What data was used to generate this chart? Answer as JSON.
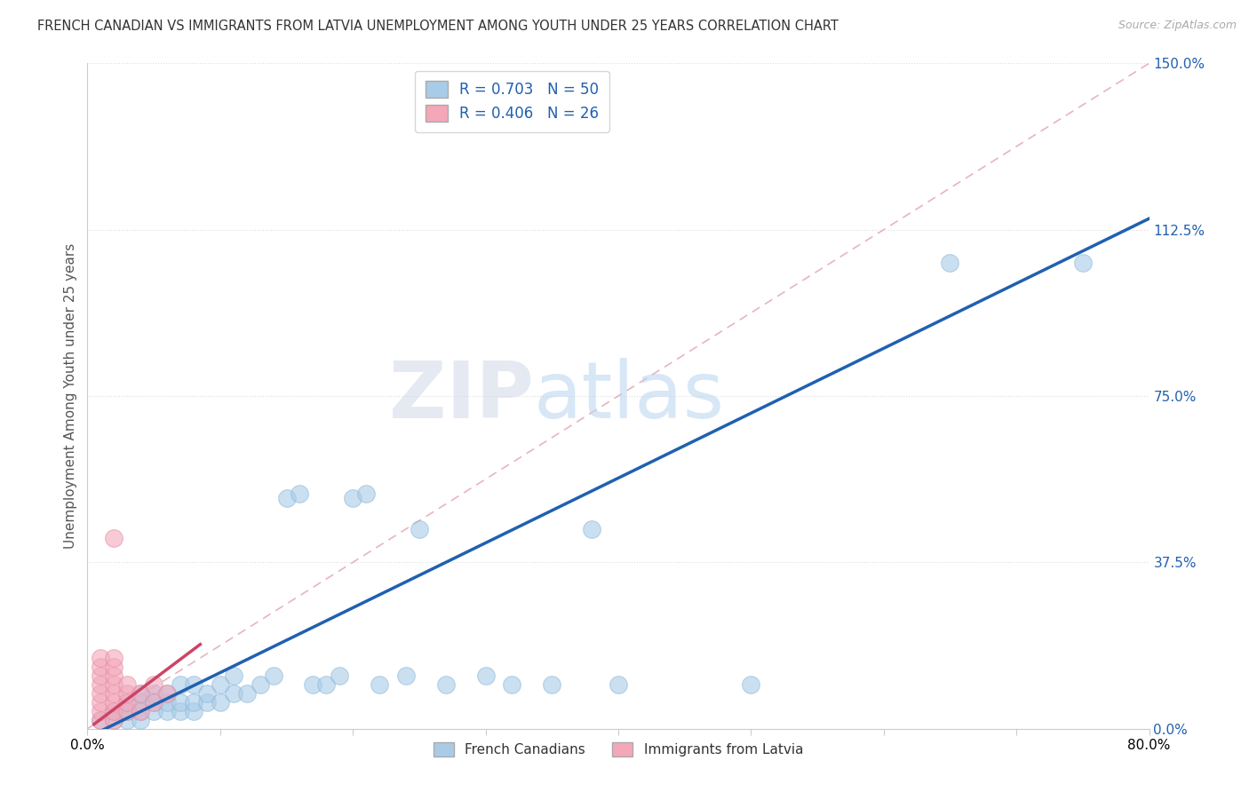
{
  "title": "FRENCH CANADIAN VS IMMIGRANTS FROM LATVIA UNEMPLOYMENT AMONG YOUTH UNDER 25 YEARS CORRELATION CHART",
  "source": "Source: ZipAtlas.com",
  "ylabel": "Unemployment Among Youth under 25 years",
  "xlim": [
    0,
    0.8
  ],
  "ylim": [
    0,
    1.5
  ],
  "yticks": [
    0.0,
    0.375,
    0.75,
    1.125,
    1.5
  ],
  "yticklabels": [
    "0.0%",
    "37.5%",
    "75.0%",
    "112.5%",
    "150.0%"
  ],
  "R_blue": 0.703,
  "N_blue": 50,
  "R_pink": 0.406,
  "N_pink": 26,
  "blue_color": "#a8cce8",
  "pink_color": "#f4a7b9",
  "blue_line_color": "#2060b0",
  "pink_line_color": "#cc4466",
  "diag_color": "#e8b4c0",
  "legend_label_blue": "French Canadians",
  "legend_label_pink": "Immigrants from Latvia",
  "watermark_zip": "ZIP",
  "watermark_atlas": "atlas",
  "background_color": "#ffffff",
  "title_fontsize": 10.5,
  "blue_scatter_x": [
    0.01,
    0.02,
    0.02,
    0.03,
    0.03,
    0.03,
    0.04,
    0.04,
    0.04,
    0.04,
    0.05,
    0.05,
    0.05,
    0.06,
    0.06,
    0.06,
    0.07,
    0.07,
    0.07,
    0.08,
    0.08,
    0.08,
    0.09,
    0.09,
    0.1,
    0.1,
    0.11,
    0.11,
    0.12,
    0.13,
    0.14,
    0.15,
    0.16,
    0.17,
    0.18,
    0.19,
    0.2,
    0.21,
    0.22,
    0.24,
    0.25,
    0.27,
    0.3,
    0.32,
    0.35,
    0.38,
    0.4,
    0.5,
    0.65,
    0.75
  ],
  "blue_scatter_y": [
    0.02,
    0.02,
    0.04,
    0.02,
    0.04,
    0.06,
    0.02,
    0.04,
    0.06,
    0.08,
    0.04,
    0.06,
    0.08,
    0.04,
    0.06,
    0.08,
    0.04,
    0.06,
    0.1,
    0.04,
    0.06,
    0.1,
    0.06,
    0.08,
    0.06,
    0.1,
    0.08,
    0.12,
    0.08,
    0.1,
    0.12,
    0.52,
    0.53,
    0.1,
    0.1,
    0.12,
    0.52,
    0.53,
    0.1,
    0.12,
    0.45,
    0.1,
    0.12,
    0.1,
    0.1,
    0.45,
    0.1,
    0.1,
    1.05,
    1.05
  ],
  "pink_scatter_x": [
    0.01,
    0.01,
    0.01,
    0.01,
    0.01,
    0.01,
    0.01,
    0.01,
    0.02,
    0.02,
    0.02,
    0.02,
    0.02,
    0.02,
    0.02,
    0.02,
    0.03,
    0.03,
    0.03,
    0.03,
    0.04,
    0.04,
    0.05,
    0.05,
    0.06,
    0.02
  ],
  "pink_scatter_y": [
    0.02,
    0.04,
    0.06,
    0.08,
    0.1,
    0.12,
    0.14,
    0.16,
    0.02,
    0.04,
    0.06,
    0.08,
    0.1,
    0.12,
    0.14,
    0.16,
    0.04,
    0.06,
    0.08,
    0.1,
    0.04,
    0.08,
    0.06,
    0.1,
    0.08,
    0.43
  ],
  "blue_line_x0": 0.0,
  "blue_line_y0": -0.02,
  "blue_line_x1": 0.8,
  "blue_line_y1": 1.15,
  "pink_line_x0": 0.005,
  "pink_line_y0": 0.01,
  "pink_line_x1": 0.085,
  "pink_line_y1": 0.19
}
